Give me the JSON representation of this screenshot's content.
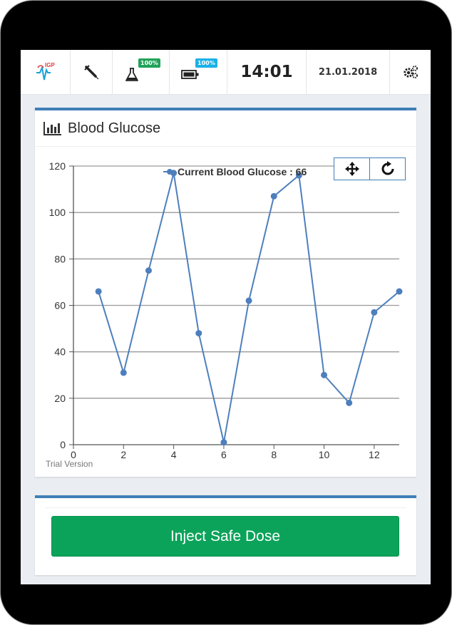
{
  "topbar": {
    "logo_text": "IGP",
    "reservoir_percent": "100%",
    "battery_percent": "100%",
    "time": "14:01",
    "date": "21.01.2018",
    "colors": {
      "reservoir_badge": "#21a359",
      "battery_badge": "#1ab1e6"
    }
  },
  "panel": {
    "title": "Blood Glucose",
    "watermark": "Trial Version"
  },
  "action": {
    "inject_label": "Inject Safe Dose"
  },
  "chart_data": {
    "type": "line",
    "series": [
      {
        "name": "Current Blood Glucose : 66",
        "color": "#4e7fbd",
        "x": [
          1,
          2,
          3,
          4,
          5,
          6,
          7,
          8,
          9,
          10,
          11,
          12,
          13
        ],
        "y": [
          66,
          31,
          75,
          117,
          48,
          1,
          62,
          107,
          116,
          30,
          18,
          57,
          66
        ]
      }
    ],
    "xlim": [
      0,
      13
    ],
    "ylim": [
      0,
      120
    ],
    "x_ticks": [
      0,
      2,
      4,
      6,
      8,
      10,
      12
    ],
    "y_ticks": [
      0,
      20,
      40,
      60,
      80,
      100,
      120
    ],
    "grid": "horizontal",
    "legend_position": "top"
  }
}
